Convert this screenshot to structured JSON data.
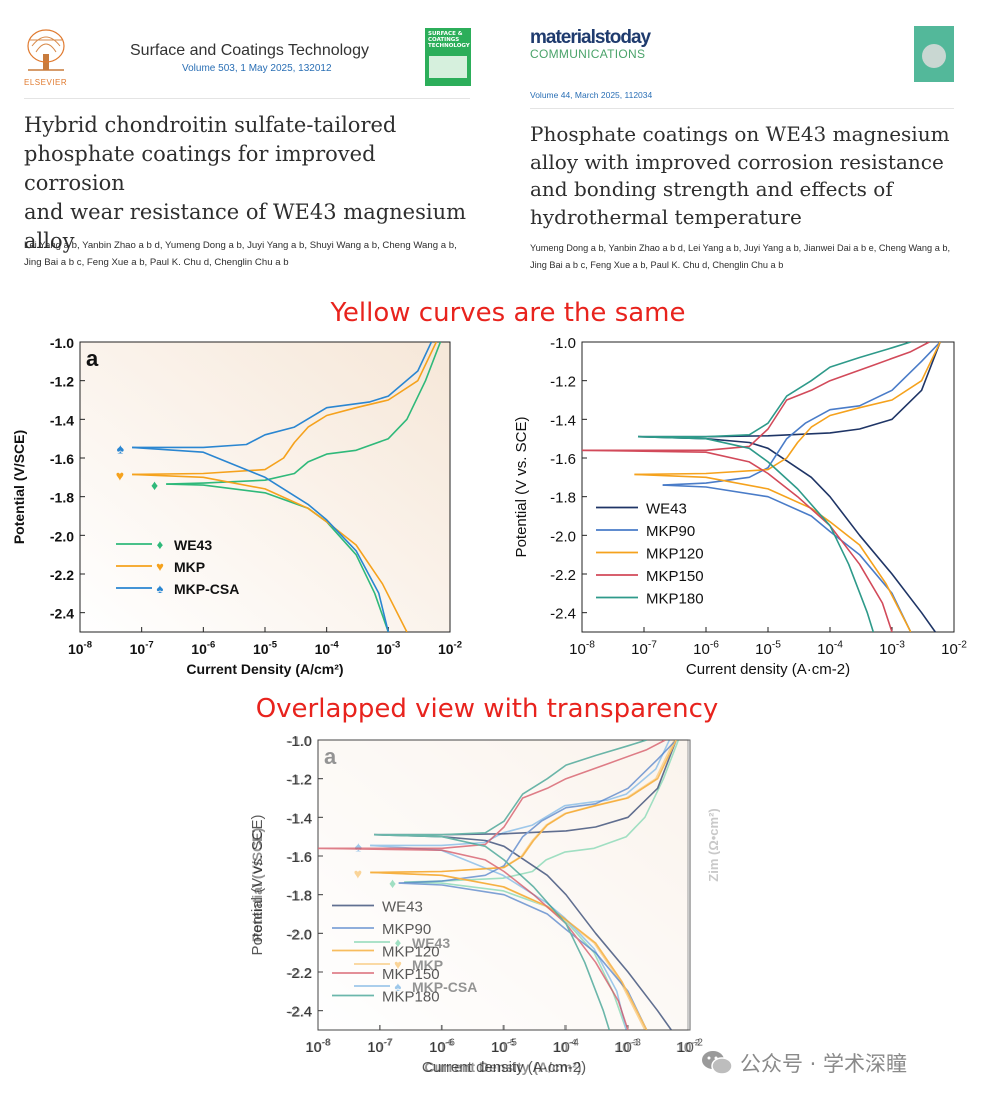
{
  "paper_left": {
    "publisher": "ELSEVIER",
    "journal": "Surface and Coatings Technology",
    "volume_line": "Volume 503, 1 May 2025, 132012",
    "cover_text": "SURFACE & COATINGS TECHNOLOGY",
    "title_lines": [
      "Hybrid chondroitin sulfate-tailored",
      "phosphate coatings for improved corrosion",
      "and wear resistance of WE43 magnesium",
      "alloy"
    ],
    "authors_line1": "Lei Yang a b, Yanbin Zhao a b d, Yumeng Dong a b, Juyi Yang a b, Shuyi Wang a b, Cheng Wang a b,",
    "authors_line2": "Jing Bai a b c, Feng Xue a b, Paul K. Chu d, Chenglin Chu a b"
  },
  "paper_right": {
    "journal_logo_1": "materialstoday",
    "journal_logo_2": "COMMUNICATIONS",
    "volume_line": "Volume 44, March 2025, 112034",
    "title_lines": [
      "Phosphate coatings on WE43 magnesium",
      "alloy with improved corrosion resistance",
      "and bonding strength and effects of",
      "hydrothermal temperature"
    ],
    "authors_line1": "Yumeng Dong a b, Yanbin Zhao a b d, Lei Yang a b, Juyi Yang a b, Jianwei Dai a b e, Cheng Wang a b,",
    "authors_line2": "Jing Bai a b c, Feng Xue a b, Paul K. Chu d, Chenglin Chu a b"
  },
  "caption_top": "Yellow curves are the same",
  "caption_bottom": "Overlapped view with transparency",
  "watermark": "公众号 · 学术深瞳",
  "chart_data": [
    {
      "type": "line",
      "panel_label": "a",
      "xlabel": "Current Density (A/cm²)",
      "ylabel": "Potential (V/SCE)",
      "right_label": "Zim (Ω•cm²)",
      "x_scale": "log",
      "xlim": [
        1e-08,
        0.01
      ],
      "ylim": [
        -2.5,
        -1.0
      ],
      "x_ticks": [
        "10-8",
        "10-7",
        "10-6",
        "10-5",
        "10-4",
        "10-3",
        "10-2"
      ],
      "y_ticks": [
        "-1.0",
        "-1.2",
        "-1.4",
        "-1.6",
        "-1.8",
        "-2.0",
        "-2.2",
        "-2.4"
      ],
      "legend_position": "bottom-left",
      "series": [
        {
          "name": "WE43",
          "color": "#2fb97a",
          "marker": "♦",
          "corr_potential": -1.735,
          "corr_current": 2.5e-07,
          "anodic": [
            [
              2.5e-07,
              -1.735
            ],
            [
              1e-06,
              -1.73
            ],
            [
              1e-05,
              -1.715
            ],
            [
              3e-05,
              -1.68
            ],
            [
              5e-05,
              -1.62
            ],
            [
              0.0001,
              -1.58
            ],
            [
              0.0003,
              -1.56
            ],
            [
              0.001,
              -1.5
            ],
            [
              0.002,
              -1.4
            ],
            [
              0.004,
              -1.2
            ],
            [
              0.007,
              -1.0
            ]
          ],
          "cathodic": [
            [
              2.5e-07,
              -1.735
            ],
            [
              1e-06,
              -1.74
            ],
            [
              1e-05,
              -1.78
            ],
            [
              5e-05,
              -1.86
            ],
            [
              0.0001,
              -1.93
            ],
            [
              0.0003,
              -2.1
            ],
            [
              0.0006,
              -2.3
            ],
            [
              0.001,
              -2.5
            ]
          ]
        },
        {
          "name": "MKP",
          "color": "#f5a21d",
          "marker": "♥",
          "corr_potential": -1.685,
          "corr_current": 7e-08,
          "anodic": [
            [
              7e-08,
              -1.685
            ],
            [
              1e-06,
              -1.68
            ],
            [
              1e-05,
              -1.66
            ],
            [
              2e-05,
              -1.6
            ],
            [
              3e-05,
              -1.52
            ],
            [
              5e-05,
              -1.44
            ],
            [
              0.0001,
              -1.38
            ],
            [
              0.0003,
              -1.34
            ],
            [
              0.001,
              -1.3
            ],
            [
              0.003,
              -1.2
            ],
            [
              0.006,
              -1.0
            ]
          ],
          "cathodic": [
            [
              7e-08,
              -1.685
            ],
            [
              1e-06,
              -1.7
            ],
            [
              1e-05,
              -1.76
            ],
            [
              5e-05,
              -1.86
            ],
            [
              0.0001,
              -1.93
            ],
            [
              0.0003,
              -2.05
            ],
            [
              0.0008,
              -2.25
            ],
            [
              0.002,
              -2.5
            ]
          ]
        },
        {
          "name": "MKP-CSA",
          "color": "#2a86d1",
          "marker": "♠",
          "corr_potential": -1.545,
          "corr_current": 7e-08,
          "anodic": [
            [
              7e-08,
              -1.545
            ],
            [
              1e-06,
              -1.545
            ],
            [
              5e-06,
              -1.53
            ],
            [
              1e-05,
              -1.48
            ],
            [
              3e-05,
              -1.44
            ],
            [
              0.0001,
              -1.34
            ],
            [
              0.0005,
              -1.31
            ],
            [
              0.001,
              -1.28
            ],
            [
              0.003,
              -1.15
            ],
            [
              0.005,
              -1.0
            ]
          ],
          "cathodic": [
            [
              7e-08,
              -1.545
            ],
            [
              1e-06,
              -1.57
            ],
            [
              1e-05,
              -1.7
            ],
            [
              5e-05,
              -1.84
            ],
            [
              0.0001,
              -1.92
            ],
            [
              0.0003,
              -2.08
            ],
            [
              0.0007,
              -2.3
            ],
            [
              0.001,
              -2.5
            ]
          ]
        }
      ]
    },
    {
      "type": "line",
      "xlabel": "Current density (A·cm-2)",
      "ylabel": "Potential (V vs. SCE)",
      "right_label": "Zim (Ω•cm²)",
      "x_scale": "log",
      "xlim": [
        1e-08,
        0.01
      ],
      "ylim": [
        -2.5,
        -1.0
      ],
      "x_ticks": [
        "10-8",
        "10-7",
        "10-6",
        "10-5",
        "10-4",
        "10-3",
        "10-2"
      ],
      "y_ticks": [
        "-1.0",
        "-1.2",
        "-1.4",
        "-1.6",
        "-1.8",
        "-2.0",
        "-2.2",
        "-2.4"
      ],
      "legend_position": "bottom-left",
      "series": [
        {
          "name": "WE43",
          "color": "#1f3566",
          "corr_potential": -1.49,
          "corr_current": 8e-08,
          "anodic": [
            [
              8e-08,
              -1.49
            ],
            [
              1e-06,
              -1.49
            ],
            [
              1e-05,
              -1.485
            ],
            [
              0.0001,
              -1.47
            ],
            [
              0.0003,
              -1.45
            ],
            [
              0.001,
              -1.4
            ],
            [
              0.003,
              -1.25
            ],
            [
              0.006,
              -1.0
            ]
          ],
          "cathodic": [
            [
              8e-08,
              -1.49
            ],
            [
              1e-06,
              -1.5
            ],
            [
              5e-06,
              -1.52
            ],
            [
              1e-05,
              -1.55
            ],
            [
              5e-05,
              -1.7
            ],
            [
              0.0001,
              -1.8
            ],
            [
              0.0003,
              -2.0
            ],
            [
              0.001,
              -2.2
            ],
            [
              0.003,
              -2.4
            ],
            [
              0.005,
              -2.5
            ]
          ]
        },
        {
          "name": "MKP90",
          "color": "#4a7cc8",
          "corr_potential": -1.74,
          "corr_current": 2e-07,
          "anodic": [
            [
              2e-07,
              -1.74
            ],
            [
              1e-06,
              -1.73
            ],
            [
              5e-06,
              -1.7
            ],
            [
              1e-05,
              -1.65
            ],
            [
              2e-05,
              -1.5
            ],
            [
              4e-05,
              -1.42
            ],
            [
              0.0001,
              -1.35
            ],
            [
              0.0003,
              -1.33
            ],
            [
              0.001,
              -1.25
            ],
            [
              0.003,
              -1.1
            ],
            [
              0.006,
              -1.0
            ]
          ],
          "cathodic": [
            [
              2e-07,
              -1.74
            ],
            [
              1e-06,
              -1.75
            ],
            [
              1e-05,
              -1.8
            ],
            [
              5e-05,
              -1.9
            ],
            [
              0.0001,
              -1.98
            ],
            [
              0.0003,
              -2.1
            ],
            [
              0.001,
              -2.3
            ],
            [
              0.002,
              -2.5
            ]
          ]
        },
        {
          "name": "MKP120",
          "color": "#f5a21d",
          "corr_potential": -1.685,
          "corr_current": 7e-08,
          "anodic": [
            [
              7e-08,
              -1.685
            ],
            [
              1e-06,
              -1.68
            ],
            [
              1e-05,
              -1.66
            ],
            [
              2e-05,
              -1.6
            ],
            [
              3e-05,
              -1.52
            ],
            [
              5e-05,
              -1.44
            ],
            [
              0.0001,
              -1.38
            ],
            [
              0.0003,
              -1.34
            ],
            [
              0.001,
              -1.3
            ],
            [
              0.003,
              -1.2
            ],
            [
              0.006,
              -1.0
            ]
          ],
          "cathodic": [
            [
              7e-08,
              -1.685
            ],
            [
              1e-06,
              -1.7
            ],
            [
              1e-05,
              -1.76
            ],
            [
              5e-05,
              -1.86
            ],
            [
              0.0001,
              -1.93
            ],
            [
              0.0003,
              -2.05
            ],
            [
              0.0008,
              -2.25
            ],
            [
              0.002,
              -2.5
            ]
          ]
        },
        {
          "name": "MKP150",
          "color": "#d24a5a",
          "corr_potential": -1.56,
          "corr_current": 1e-08,
          "anodic": [
            [
              1e-08,
              -1.56
            ],
            [
              1e-06,
              -1.56
            ],
            [
              5e-06,
              -1.54
            ],
            [
              1e-05,
              -1.45
            ],
            [
              2e-05,
              -1.3
            ],
            [
              5e-05,
              -1.25
            ],
            [
              0.0001,
              -1.2
            ],
            [
              0.0005,
              -1.12
            ],
            [
              0.002,
              -1.05
            ],
            [
              0.004,
              -1.0
            ]
          ],
          "cathodic": [
            [
              1e-08,
              -1.56
            ],
            [
              1e-06,
              -1.57
            ],
            [
              5e-06,
              -1.62
            ],
            [
              1e-05,
              -1.68
            ],
            [
              3e-05,
              -1.8
            ],
            [
              0.0001,
              -1.95
            ],
            [
              0.0003,
              -2.15
            ],
            [
              0.0007,
              -2.35
            ],
            [
              0.001,
              -2.5
            ]
          ]
        },
        {
          "name": "MKP180",
          "color": "#2e9a8a",
          "corr_potential": -1.49,
          "corr_current": 8e-08,
          "anodic": [
            [
              8e-08,
              -1.49
            ],
            [
              1e-06,
              -1.49
            ],
            [
              5e-06,
              -1.48
            ],
            [
              1e-05,
              -1.42
            ],
            [
              2e-05,
              -1.28
            ],
            [
              5e-05,
              -1.2
            ],
            [
              0.0001,
              -1.13
            ],
            [
              0.0003,
              -1.08
            ],
            [
              0.001,
              -1.03
            ],
            [
              0.002,
              -1.0
            ]
          ],
          "cathodic": [
            [
              8e-08,
              -1.49
            ],
            [
              1e-06,
              -1.5
            ],
            [
              5e-06,
              -1.55
            ],
            [
              1e-05,
              -1.62
            ],
            [
              3e-05,
              -1.76
            ],
            [
              0.0001,
              -1.95
            ],
            [
              0.0002,
              -2.15
            ],
            [
              0.0004,
              -2.4
            ],
            [
              0.0005,
              -2.5
            ]
          ]
        }
      ]
    }
  ]
}
